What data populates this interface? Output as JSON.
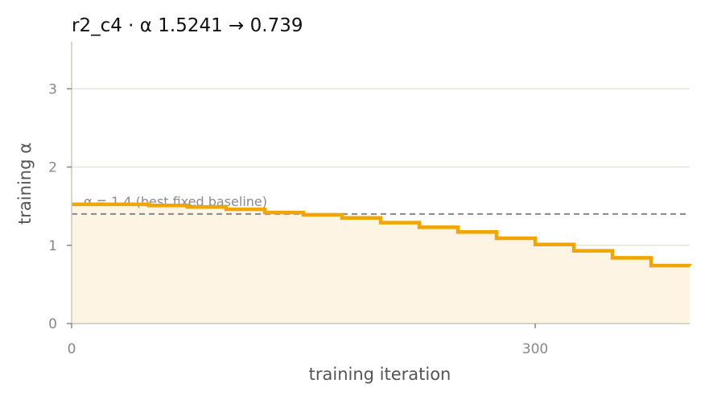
{
  "chart_data": {
    "type": "line",
    "title": "r2_c4   ·   α 1.5241 → 0.739",
    "xlabel": "training iteration",
    "ylabel": "training α",
    "xlim": [
      0,
      400
    ],
    "ylim": [
      0,
      3.6
    ],
    "xticks": [
      0,
      300
    ],
    "yticks": [
      0,
      1,
      2,
      3
    ],
    "grid": "horizontal",
    "step": true,
    "series": [
      {
        "x": [
          0,
          25,
          50,
          75,
          100,
          125,
          150,
          175,
          200,
          225,
          250,
          275,
          300,
          325,
          350,
          375,
          400
        ],
        "y": [
          1.524,
          1.524,
          1.51,
          1.49,
          1.46,
          1.42,
          1.39,
          1.35,
          1.29,
          1.23,
          1.17,
          1.09,
          1.01,
          0.93,
          0.84,
          0.74,
          0.739
        ],
        "color": "#f0a500",
        "fill": "#fdf4e3"
      }
    ],
    "reference_line": {
      "y": 1.4,
      "label": "α = 1.4 (best fixed baseline)",
      "color": "#888888"
    }
  }
}
